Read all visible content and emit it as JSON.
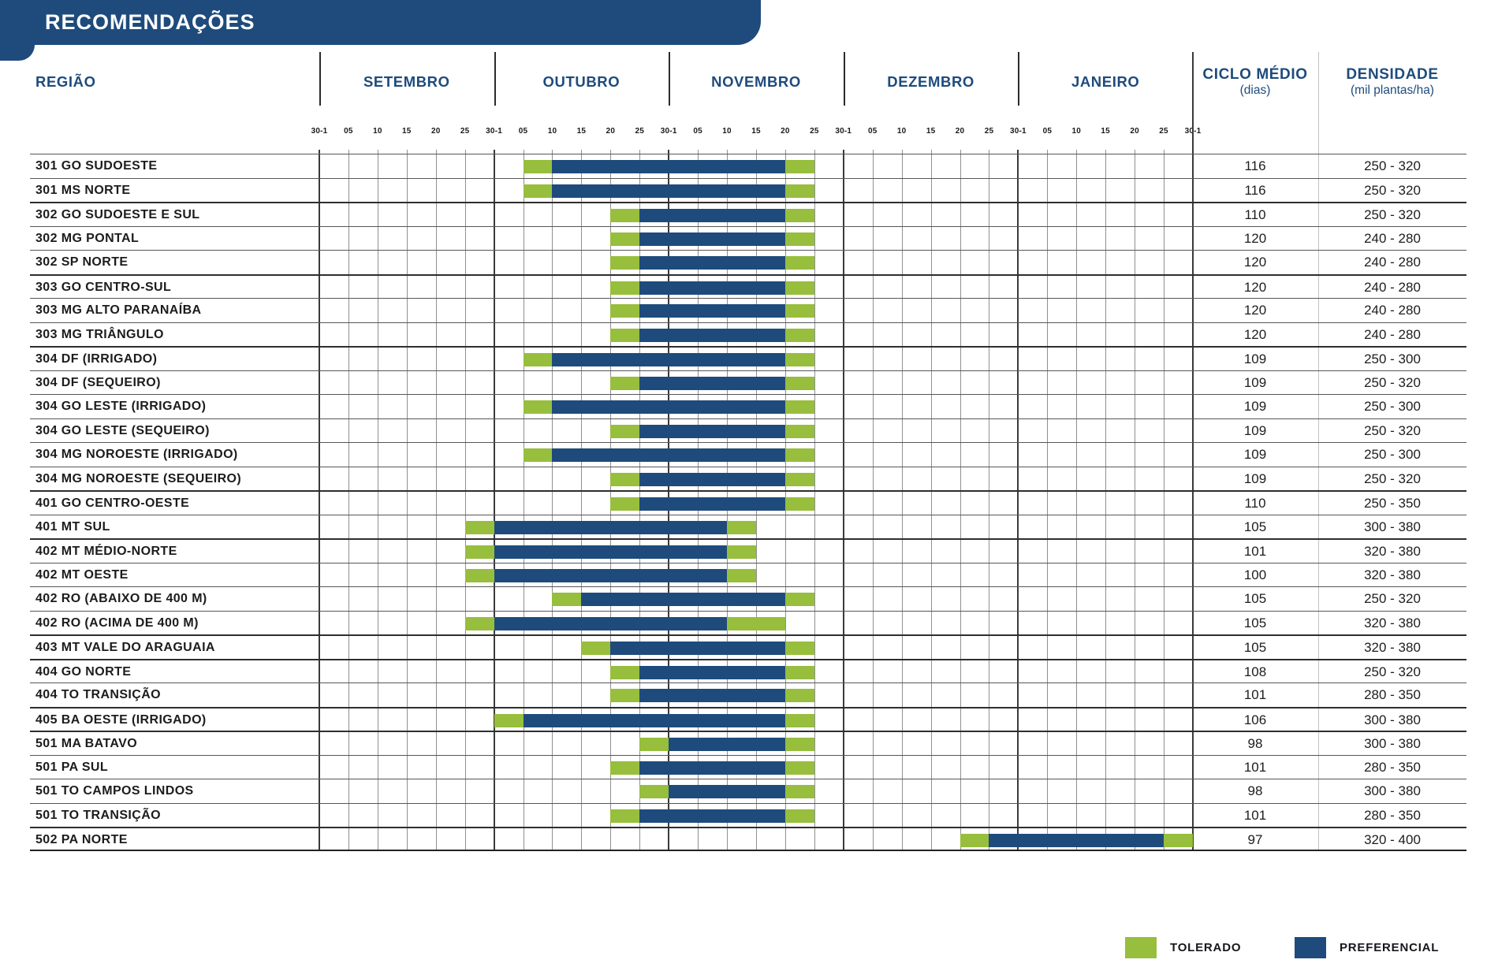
{
  "title": "RECOMENDAÇÕES",
  "colors": {
    "navy": "#1E4B7C",
    "green": "#97BE3D"
  },
  "columns": {
    "region": "REGIÃO",
    "ciclo_line1": "CICLO MÉDIO",
    "ciclo_line2": "(dias)",
    "densidade_line1": "DENSIDADE",
    "densidade_line2": "(mil plantas/ha)"
  },
  "legend": [
    {
      "label": "TOLERADO",
      "color_key": "green"
    },
    {
      "label": "PREFERENCIAL",
      "color_key": "navy"
    }
  ],
  "chart_data": {
    "type": "gantt",
    "months": [
      "SETEMBRO",
      "OUTUBRO",
      "NOVEMBRO",
      "DEZEMBRO",
      "JANEIRO"
    ],
    "tick_labels_per_month": [
      "30-1",
      "05",
      "10",
      "15",
      "20",
      "25"
    ],
    "final_tick_label": "30-1",
    "ticks_total": 31,
    "unit": "each cell = 5-day period; tick 0 = Set 30-1, tick 30 = Jan 30-1",
    "rows": [
      {
        "region": "301 GO SUDOESTE",
        "ciclo_dias": "116",
        "densidade": "250 - 320",
        "segments": [
          {
            "type": "tolerado",
            "from": 7,
            "to": 8
          },
          {
            "type": "preferencial",
            "from": 8,
            "to": 16
          },
          {
            "type": "tolerado",
            "from": 16,
            "to": 17
          }
        ]
      },
      {
        "region": "301 MS NORTE",
        "ciclo_dias": "116",
        "densidade": "250 - 320",
        "segments": [
          {
            "type": "tolerado",
            "from": 7,
            "to": 8
          },
          {
            "type": "preferencial",
            "from": 8,
            "to": 16
          },
          {
            "type": "tolerado",
            "from": 16,
            "to": 17
          }
        ]
      },
      {
        "region": "302 GO SUDOESTE E SUL",
        "ciclo_dias": "110",
        "densidade": "250 - 320",
        "segments": [
          {
            "type": "tolerado",
            "from": 10,
            "to": 11
          },
          {
            "type": "preferencial",
            "from": 11,
            "to": 16
          },
          {
            "type": "tolerado",
            "from": 16,
            "to": 17
          }
        ]
      },
      {
        "region": "302 MG PONTAL",
        "ciclo_dias": "120",
        "densidade": "240 - 280",
        "segments": [
          {
            "type": "tolerado",
            "from": 10,
            "to": 11
          },
          {
            "type": "preferencial",
            "from": 11,
            "to": 16
          },
          {
            "type": "tolerado",
            "from": 16,
            "to": 17
          }
        ]
      },
      {
        "region": "302 SP NORTE",
        "ciclo_dias": "120",
        "densidade": "240 - 280",
        "segments": [
          {
            "type": "tolerado",
            "from": 10,
            "to": 11
          },
          {
            "type": "preferencial",
            "from": 11,
            "to": 16
          },
          {
            "type": "tolerado",
            "from": 16,
            "to": 17
          }
        ]
      },
      {
        "region": "303 GO CENTRO-SUL",
        "ciclo_dias": "120",
        "densidade": "240 - 280",
        "segments": [
          {
            "type": "tolerado",
            "from": 10,
            "to": 11
          },
          {
            "type": "preferencial",
            "from": 11,
            "to": 16
          },
          {
            "type": "tolerado",
            "from": 16,
            "to": 17
          }
        ]
      },
      {
        "region": "303 MG ALTO PARANAÍBA",
        "ciclo_dias": "120",
        "densidade": "240 - 280",
        "segments": [
          {
            "type": "tolerado",
            "from": 10,
            "to": 11
          },
          {
            "type": "preferencial",
            "from": 11,
            "to": 16
          },
          {
            "type": "tolerado",
            "from": 16,
            "to": 17
          }
        ]
      },
      {
        "region": "303 MG TRIÂNGULO",
        "ciclo_dias": "120",
        "densidade": "240 - 280",
        "segments": [
          {
            "type": "tolerado",
            "from": 10,
            "to": 11
          },
          {
            "type": "preferencial",
            "from": 11,
            "to": 16
          },
          {
            "type": "tolerado",
            "from": 16,
            "to": 17
          }
        ]
      },
      {
        "region": "304 DF (IRRIGADO)",
        "ciclo_dias": "109",
        "densidade": "250 - 300",
        "segments": [
          {
            "type": "tolerado",
            "from": 7,
            "to": 8
          },
          {
            "type": "preferencial",
            "from": 8,
            "to": 16
          },
          {
            "type": "tolerado",
            "from": 16,
            "to": 17
          }
        ]
      },
      {
        "region": "304 DF (SEQUEIRO)",
        "ciclo_dias": "109",
        "densidade": "250 - 320",
        "segments": [
          {
            "type": "tolerado",
            "from": 10,
            "to": 11
          },
          {
            "type": "preferencial",
            "from": 11,
            "to": 16
          },
          {
            "type": "tolerado",
            "from": 16,
            "to": 17
          }
        ]
      },
      {
        "region": "304 GO LESTE (IRRIGADO)",
        "ciclo_dias": "109",
        "densidade": "250 - 300",
        "segments": [
          {
            "type": "tolerado",
            "from": 7,
            "to": 8
          },
          {
            "type": "preferencial",
            "from": 8,
            "to": 16
          },
          {
            "type": "tolerado",
            "from": 16,
            "to": 17
          }
        ]
      },
      {
        "region": "304 GO LESTE (SEQUEIRO)",
        "ciclo_dias": "109",
        "densidade": "250 - 320",
        "segments": [
          {
            "type": "tolerado",
            "from": 10,
            "to": 11
          },
          {
            "type": "preferencial",
            "from": 11,
            "to": 16
          },
          {
            "type": "tolerado",
            "from": 16,
            "to": 17
          }
        ]
      },
      {
        "region": "304 MG NOROESTE (IRRIGADO)",
        "ciclo_dias": "109",
        "densidade": "250 - 300",
        "segments": [
          {
            "type": "tolerado",
            "from": 7,
            "to": 8
          },
          {
            "type": "preferencial",
            "from": 8,
            "to": 16
          },
          {
            "type": "tolerado",
            "from": 16,
            "to": 17
          }
        ]
      },
      {
        "region": "304 MG NOROESTE (SEQUEIRO)",
        "ciclo_dias": "109",
        "densidade": "250 - 320",
        "segments": [
          {
            "type": "tolerado",
            "from": 10,
            "to": 11
          },
          {
            "type": "preferencial",
            "from": 11,
            "to": 16
          },
          {
            "type": "tolerado",
            "from": 16,
            "to": 17
          }
        ]
      },
      {
        "region": "401 GO CENTRO-OESTE",
        "ciclo_dias": "110",
        "densidade": "250 - 350",
        "segments": [
          {
            "type": "tolerado",
            "from": 10,
            "to": 11
          },
          {
            "type": "preferencial",
            "from": 11,
            "to": 16
          },
          {
            "type": "tolerado",
            "from": 16,
            "to": 17
          }
        ]
      },
      {
        "region": "401 MT SUL",
        "ciclo_dias": "105",
        "densidade": "300 - 380",
        "segments": [
          {
            "type": "tolerado",
            "from": 5,
            "to": 6
          },
          {
            "type": "preferencial",
            "from": 6,
            "to": 14
          },
          {
            "type": "tolerado",
            "from": 14,
            "to": 15
          }
        ]
      },
      {
        "region": "402 MT MÉDIO-NORTE",
        "ciclo_dias": "101",
        "densidade": "320 - 380",
        "segments": [
          {
            "type": "tolerado",
            "from": 5,
            "to": 6
          },
          {
            "type": "preferencial",
            "from": 6,
            "to": 14
          },
          {
            "type": "tolerado",
            "from": 14,
            "to": 15
          }
        ]
      },
      {
        "region": "402 MT OESTE",
        "ciclo_dias": "100",
        "densidade": "320 - 380",
        "segments": [
          {
            "type": "tolerado",
            "from": 5,
            "to": 6
          },
          {
            "type": "preferencial",
            "from": 6,
            "to": 14
          },
          {
            "type": "tolerado",
            "from": 14,
            "to": 15
          }
        ]
      },
      {
        "region": "402 RO (ABAIXO DE 400 M)",
        "ciclo_dias": "105",
        "densidade": "250 - 320",
        "segments": [
          {
            "type": "tolerado",
            "from": 8,
            "to": 9
          },
          {
            "type": "preferencial",
            "from": 9,
            "to": 16
          },
          {
            "type": "tolerado",
            "from": 16,
            "to": 17
          }
        ]
      },
      {
        "region": "402 RO (ACIMA DE 400 M)",
        "ciclo_dias": "105",
        "densidade": "320 - 380",
        "segments": [
          {
            "type": "tolerado",
            "from": 5,
            "to": 6
          },
          {
            "type": "preferencial",
            "from": 6,
            "to": 14
          },
          {
            "type": "tolerado",
            "from": 14,
            "to": 16
          }
        ]
      },
      {
        "region": "403 MT VALE DO ARAGUAIA",
        "ciclo_dias": "105",
        "densidade": "320 - 380",
        "segments": [
          {
            "type": "tolerado",
            "from": 9,
            "to": 10
          },
          {
            "type": "preferencial",
            "from": 10,
            "to": 16
          },
          {
            "type": "tolerado",
            "from": 16,
            "to": 17
          }
        ]
      },
      {
        "region": "404 GO NORTE",
        "ciclo_dias": "108",
        "densidade": "250 - 320",
        "segments": [
          {
            "type": "tolerado",
            "from": 10,
            "to": 11
          },
          {
            "type": "preferencial",
            "from": 11,
            "to": 16
          },
          {
            "type": "tolerado",
            "from": 16,
            "to": 17
          }
        ]
      },
      {
        "region": "404 TO TRANSIÇÃO",
        "ciclo_dias": "101",
        "densidade": "280 - 350",
        "segments": [
          {
            "type": "tolerado",
            "from": 10,
            "to": 11
          },
          {
            "type": "preferencial",
            "from": 11,
            "to": 16
          },
          {
            "type": "tolerado",
            "from": 16,
            "to": 17
          }
        ]
      },
      {
        "region": "405 BA OESTE (IRRIGADO)",
        "ciclo_dias": "106",
        "densidade": "300 - 380",
        "segments": [
          {
            "type": "tolerado",
            "from": 6,
            "to": 7
          },
          {
            "type": "preferencial",
            "from": 7,
            "to": 16
          },
          {
            "type": "tolerado",
            "from": 16,
            "to": 17
          }
        ]
      },
      {
        "region": "501 MA BATAVO",
        "ciclo_dias": "98",
        "densidade": "300 - 380",
        "segments": [
          {
            "type": "tolerado",
            "from": 11,
            "to": 12
          },
          {
            "type": "preferencial",
            "from": 12,
            "to": 16
          },
          {
            "type": "tolerado",
            "from": 16,
            "to": 17
          }
        ]
      },
      {
        "region": "501 PA SUL",
        "ciclo_dias": "101",
        "densidade": "280 - 350",
        "segments": [
          {
            "type": "tolerado",
            "from": 10,
            "to": 11
          },
          {
            "type": "preferencial",
            "from": 11,
            "to": 16
          },
          {
            "type": "tolerado",
            "from": 16,
            "to": 17
          }
        ]
      },
      {
        "region": "501 TO CAMPOS LINDOS",
        "ciclo_dias": "98",
        "densidade": "300 - 380",
        "segments": [
          {
            "type": "tolerado",
            "from": 11,
            "to": 12
          },
          {
            "type": "preferencial",
            "from": 12,
            "to": 16
          },
          {
            "type": "tolerado",
            "from": 16,
            "to": 17
          }
        ]
      },
      {
        "region": "501 TO TRANSIÇÃO",
        "ciclo_dias": "101",
        "densidade": "280 - 350",
        "segments": [
          {
            "type": "tolerado",
            "from": 10,
            "to": 11
          },
          {
            "type": "preferencial",
            "from": 11,
            "to": 16
          },
          {
            "type": "tolerado",
            "from": 16,
            "to": 17
          }
        ]
      },
      {
        "region": "502 PA NORTE",
        "ciclo_dias": "97",
        "densidade": "320 - 400",
        "segments": [
          {
            "type": "tolerado",
            "from": 22,
            "to": 23
          },
          {
            "type": "preferencial",
            "from": 23,
            "to": 29
          },
          {
            "type": "tolerado",
            "from": 29,
            "to": 30
          }
        ]
      }
    ]
  }
}
